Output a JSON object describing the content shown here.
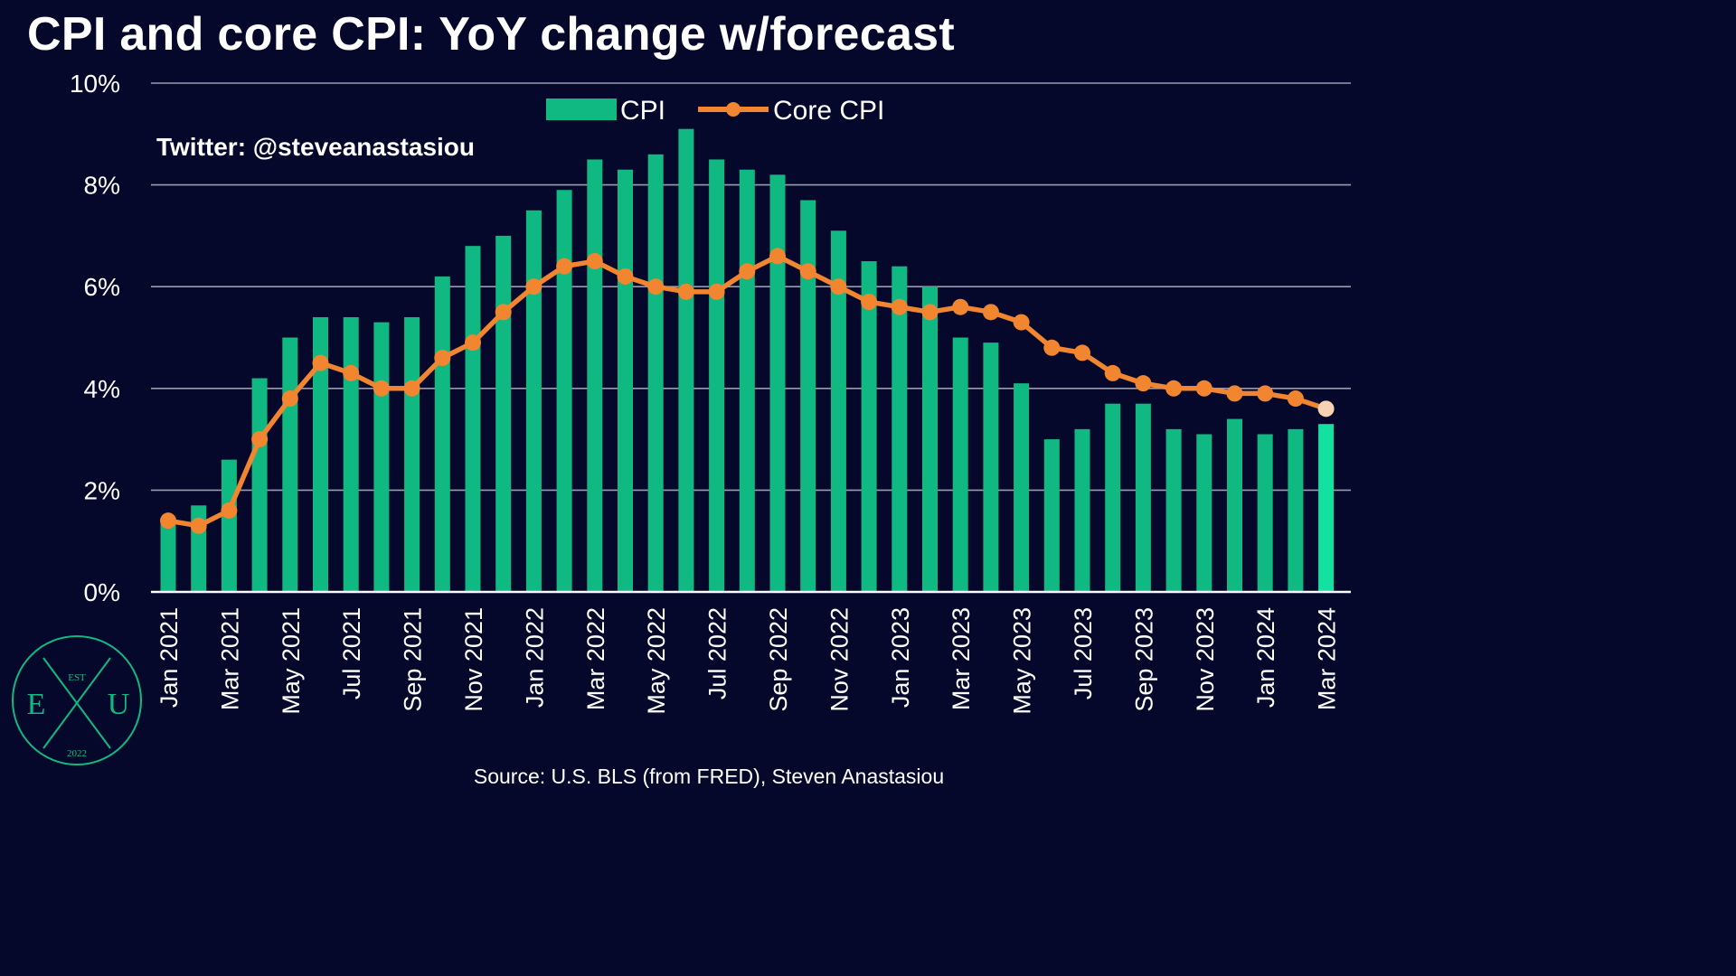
{
  "title": "CPI and core CPI: YoY change w/forecast",
  "twitter_handle": "Twitter: @steveanastasiou",
  "source": "Source: U.S. BLS (from FRED), Steven Anastasiou",
  "logo": {
    "top": "EST",
    "left": "E",
    "center": "X",
    "right": "U",
    "bottom": "2022",
    "color": "#10b981"
  },
  "colors": {
    "background": "#05082a",
    "cpi_bar": "#10b981",
    "cpi_bar_forecast": "#14e0a0",
    "core_line": "#f28530",
    "core_forecast_point": "#f9d2b4",
    "grid": "#9a9cad"
  },
  "chart_data": {
    "type": "bar",
    "title": "CPI and core CPI: YoY change w/forecast",
    "xlabel": "",
    "ylabel": "",
    "ylim": [
      0,
      10
    ],
    "yticks": [
      "0%",
      "2%",
      "4%",
      "6%",
      "8%",
      "10%"
    ],
    "grid": true,
    "legend_position": "top-center",
    "categories": [
      "Jan 2021",
      "Feb 2021",
      "Mar 2021",
      "Apr 2021",
      "May 2021",
      "Jun 2021",
      "Jul 2021",
      "Aug 2021",
      "Sep 2021",
      "Oct 2021",
      "Nov 2021",
      "Dec 2021",
      "Jan 2022",
      "Feb 2022",
      "Mar 2022",
      "Apr 2022",
      "May 2022",
      "Jun 2022",
      "Jul 2022",
      "Aug 2022",
      "Sep 2022",
      "Oct 2022",
      "Nov 2022",
      "Dec 2022",
      "Jan 2023",
      "Feb 2023",
      "Mar 2023",
      "Apr 2023",
      "May 2023",
      "Jun 2023",
      "Jul 2023",
      "Aug 2023",
      "Sep 2023",
      "Oct 2023",
      "Nov 2023",
      "Dec 2023",
      "Jan 2024",
      "Feb 2024",
      "Mar 2024"
    ],
    "x_tick_labels": [
      "Jan 2021",
      "Mar 2021",
      "May 2021",
      "Jul 2021",
      "Sep 2021",
      "Nov 2021",
      "Jan 2022",
      "Mar 2022",
      "May 2022",
      "Jul 2022",
      "Sep 2022",
      "Nov 2022",
      "Jan 2023",
      "Mar 2023",
      "May 2023",
      "Jul 2023",
      "Sep 2023",
      "Nov 2023",
      "Jan 2024",
      "Mar 2024"
    ],
    "series": [
      {
        "name": "CPI",
        "type": "bar",
        "values": [
          1.4,
          1.7,
          2.6,
          4.2,
          5.0,
          5.4,
          5.4,
          5.3,
          5.4,
          6.2,
          6.8,
          7.0,
          7.5,
          7.9,
          8.5,
          8.3,
          8.6,
          9.1,
          8.5,
          8.3,
          8.2,
          7.7,
          7.1,
          6.5,
          6.4,
          6.0,
          5.0,
          4.9,
          4.1,
          3.0,
          3.2,
          3.7,
          3.7,
          3.2,
          3.1,
          3.4,
          3.1,
          3.2,
          3.3
        ],
        "forecast_from_index": 38
      },
      {
        "name": "Core CPI",
        "type": "line",
        "values": [
          1.4,
          1.3,
          1.6,
          3.0,
          3.8,
          4.5,
          4.3,
          4.0,
          4.0,
          4.6,
          4.9,
          5.5,
          6.0,
          6.4,
          6.5,
          6.2,
          6.0,
          5.9,
          5.9,
          6.3,
          6.6,
          6.3,
          6.0,
          5.7,
          5.6,
          5.5,
          5.6,
          5.5,
          5.3,
          4.8,
          4.7,
          4.3,
          4.1,
          4.0,
          4.0,
          3.9,
          3.9,
          3.8,
          3.6
        ],
        "forecast_from_index": 38
      }
    ]
  }
}
